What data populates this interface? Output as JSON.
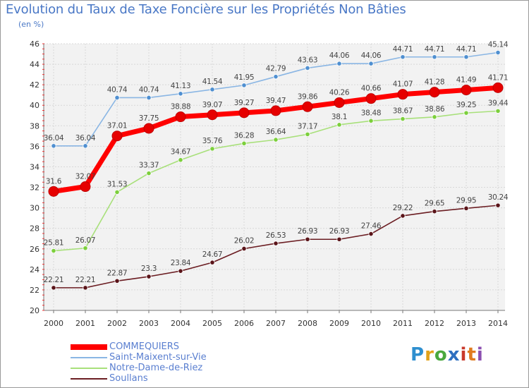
{
  "title": "Evolution du Taux de Taxe Foncière sur les Propriétés Non Bâties",
  "unit_label": "(en %)",
  "logo": {
    "text": "Proxiti"
  },
  "chart_data": {
    "type": "line",
    "title": "Evolution du Taux de Taxe Foncière sur les Propriétés Non Bâties",
    "ylabel": "(en %)",
    "xlabel": "",
    "ylim": [
      20,
      46
    ],
    "yticks": [
      20,
      22,
      24,
      26,
      28,
      30,
      32,
      34,
      36,
      38,
      40,
      42,
      44,
      46
    ],
    "grid": true,
    "categories": [
      "2000",
      "2001",
      "2002",
      "2003",
      "2004",
      "2005",
      "2006",
      "2007",
      "2008",
      "2009",
      "2010",
      "2011",
      "2012",
      "2013",
      "2014"
    ],
    "legend_position": "bottom-left",
    "series": [
      {
        "name": "Soullans",
        "color": "#6b1d22",
        "dot": "#5a1419",
        "emphasis": false,
        "values": [
          22.21,
          22.21,
          22.87,
          23.3,
          23.84,
          24.67,
          26.02,
          26.53,
          26.93,
          26.93,
          27.46,
          29.22,
          29.65,
          29.95,
          30.24
        ],
        "labels": [
          "22.21",
          "22.21",
          "22.87",
          "23.3",
          "23.84",
          "24.67",
          "26.02",
          "26.53",
          "26.93",
          "26.93",
          "27.46",
          "29.22",
          "29.65",
          "29.95",
          "30.24"
        ]
      },
      {
        "name": "Notre-Dame-de-Riez",
        "color": "#a8e07a",
        "dot": "#7ccf3c",
        "emphasis": false,
        "values": [
          25.81,
          26.07,
          31.53,
          33.37,
          34.67,
          35.76,
          36.28,
          36.64,
          37.17,
          38.1,
          38.48,
          38.67,
          38.86,
          39.25,
          39.44
        ],
        "labels": [
          "25.81",
          "26.07",
          "31.53",
          "33.37",
          "34.67",
          "35.76",
          "36.28",
          "36.64",
          "37.17",
          "38.1",
          "38.48",
          "38.67",
          "38.86",
          "39.25",
          "39.44"
        ]
      },
      {
        "name": "Saint-Maixent-sur-Vie",
        "color": "#8ab6e4",
        "dot": "#4f8fd0",
        "emphasis": false,
        "values": [
          36.04,
          36.04,
          40.74,
          40.74,
          41.13,
          41.54,
          41.95,
          42.79,
          43.63,
          44.06,
          44.06,
          44.71,
          44.71,
          44.71,
          45.14
        ],
        "labels": [
          "36.04",
          "36.04",
          "40.74",
          "40.74",
          "41.13",
          "41.54",
          "41.95",
          "42.79",
          "43.63",
          "44.06",
          "44.06",
          "44.71",
          "44.71",
          "44.71",
          "45.14"
        ]
      },
      {
        "name": "COMMEQUIERS",
        "color": "#ff0000",
        "dot": "#e60000",
        "emphasis": true,
        "values": [
          31.6,
          32.07,
          37.01,
          37.75,
          38.88,
          39.07,
          39.27,
          39.47,
          39.86,
          40.26,
          40.66,
          41.07,
          41.28,
          41.49,
          41.71
        ],
        "labels": [
          "31.6",
          "32.07",
          "37.01",
          "37.75",
          "38.88",
          "39.07",
          "39.27",
          "39.47",
          "39.86",
          "40.26",
          "40.66",
          "41.07",
          "41.28",
          "41.49",
          "41.71"
        ]
      }
    ],
    "legend_order": [
      "COMMEQUIERS",
      "Saint-Maixent-sur-Vie",
      "Notre-Dame-de-Riez",
      "Soullans"
    ]
  }
}
